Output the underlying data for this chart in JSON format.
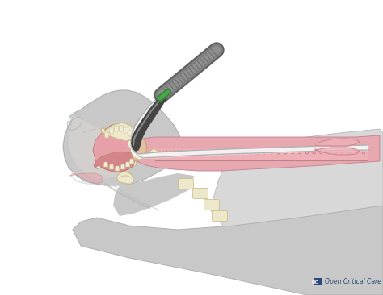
{
  "bg_color": "#ffffff",
  "head_fill": "#c8c8c8",
  "head_stroke": "#b0b0b0",
  "skin_light": "#dbd5d0",
  "mouth_fill": "#e8a0a8",
  "mouth_stroke": "#c07878",
  "teeth_fill": "#f0ecd8",
  "teeth_stroke": "#c8c090",
  "tongue_fill": "#d4858a",
  "throat_fill": "#e8a8b0",
  "throat_stroke": "#c08090",
  "trachea_fill": "#f0b0b8",
  "trachea_stroke": "#c08088",
  "trachea_ring": "#c08088",
  "epiglottis_fill": "#e0c0a0",
  "epiglottis_stroke": "#c0a070",
  "bone_fill": "#ede8cc",
  "bone_stroke": "#c8b880",
  "blade_dark": "#444444",
  "blade_light": "#888888",
  "handle_dark": "#606060",
  "handle_mid": "#808080",
  "handle_light": "#a0a0a0",
  "green_band": "#3a8a3a",
  "tube_fill": "#f8f8f8",
  "tube_stroke": "#b0b0b0",
  "tube_cuff_fill": "#f0b0b8",
  "pillow_fill": "#d8d8d8",
  "pillow_stroke": "#b8b8b8",
  "neck_shadow": "#b8b8b8",
  "logo_color": "#2a4a7a",
  "logo_text": "Open Critical Care",
  "figsize": [
    4.74,
    3.66
  ],
  "dpi": 100
}
